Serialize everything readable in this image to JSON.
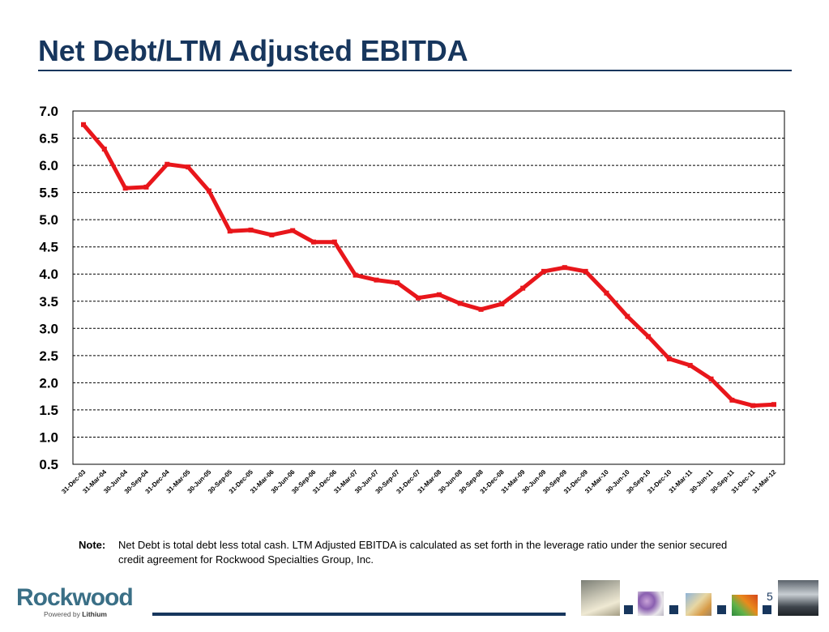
{
  "slide": {
    "title": "Net Debt/LTM Adjusted EBITDA",
    "page_number": "5"
  },
  "note": {
    "label": "Note:",
    "text": "Net Debt is total debt less total cash.  LTM Adjusted EBITDA is calculated as set forth in the leverage ratio under the senior secured credit agreement for Rockwood Specialties Group, Inc."
  },
  "footer": {
    "logo_text": "Rockwood",
    "logo_sub_prefix": "Powered by",
    "logo_sub_brand": "Lithium",
    "accent_color": "#17365d"
  },
  "chart_data": {
    "type": "line",
    "title": "",
    "xlabel": "",
    "ylabel": "",
    "ylim": [
      0.5,
      7.0
    ],
    "yticks": [
      "7.0",
      "6.5",
      "6.0",
      "5.5",
      "5.0",
      "4.5",
      "4.0",
      "3.5",
      "3.0",
      "2.5",
      "2.0",
      "1.5",
      "1.0",
      "0.5"
    ],
    "grid": "dashed horizontal",
    "line_color": "#e8161b",
    "categories": [
      "31-Dec-03",
      "31-Mar-04",
      "30-Jun-04",
      "30-Sep-04",
      "31-Dec-04",
      "31-Mar-05",
      "30-Jun-05",
      "30-Sep-05",
      "31-Dec-05",
      "31-Mar-06",
      "30-Jun-06",
      "30-Sep-06",
      "31-Dec-06",
      "31-Mar-07",
      "30-Jun-07",
      "30-Sep-07",
      "31-Dec-07",
      "31-Mar-08",
      "30-Jun-08",
      "30-Sep-08",
      "31-Dec-08",
      "31-Mar-09",
      "30-Jun-09",
      "30-Sep-09",
      "31-Dec-09",
      "31-Mar-10",
      "30-Jun-10",
      "30-Sep-10",
      "31-Dec-10",
      "31-Mar-11",
      "30-Jun-11",
      "30-Sep-11",
      "31-Dec-11",
      "31-Mar-12"
    ],
    "values": [
      6.75,
      6.3,
      5.58,
      5.6,
      6.02,
      5.97,
      5.53,
      4.79,
      4.81,
      4.72,
      4.8,
      4.59,
      4.59,
      3.98,
      3.89,
      3.84,
      3.56,
      3.62,
      3.46,
      3.35,
      3.45,
      3.74,
      4.05,
      4.12,
      4.05,
      3.65,
      3.22,
      2.85,
      2.44,
      2.32,
      2.07,
      1.68,
      1.58,
      1.6
    ]
  }
}
